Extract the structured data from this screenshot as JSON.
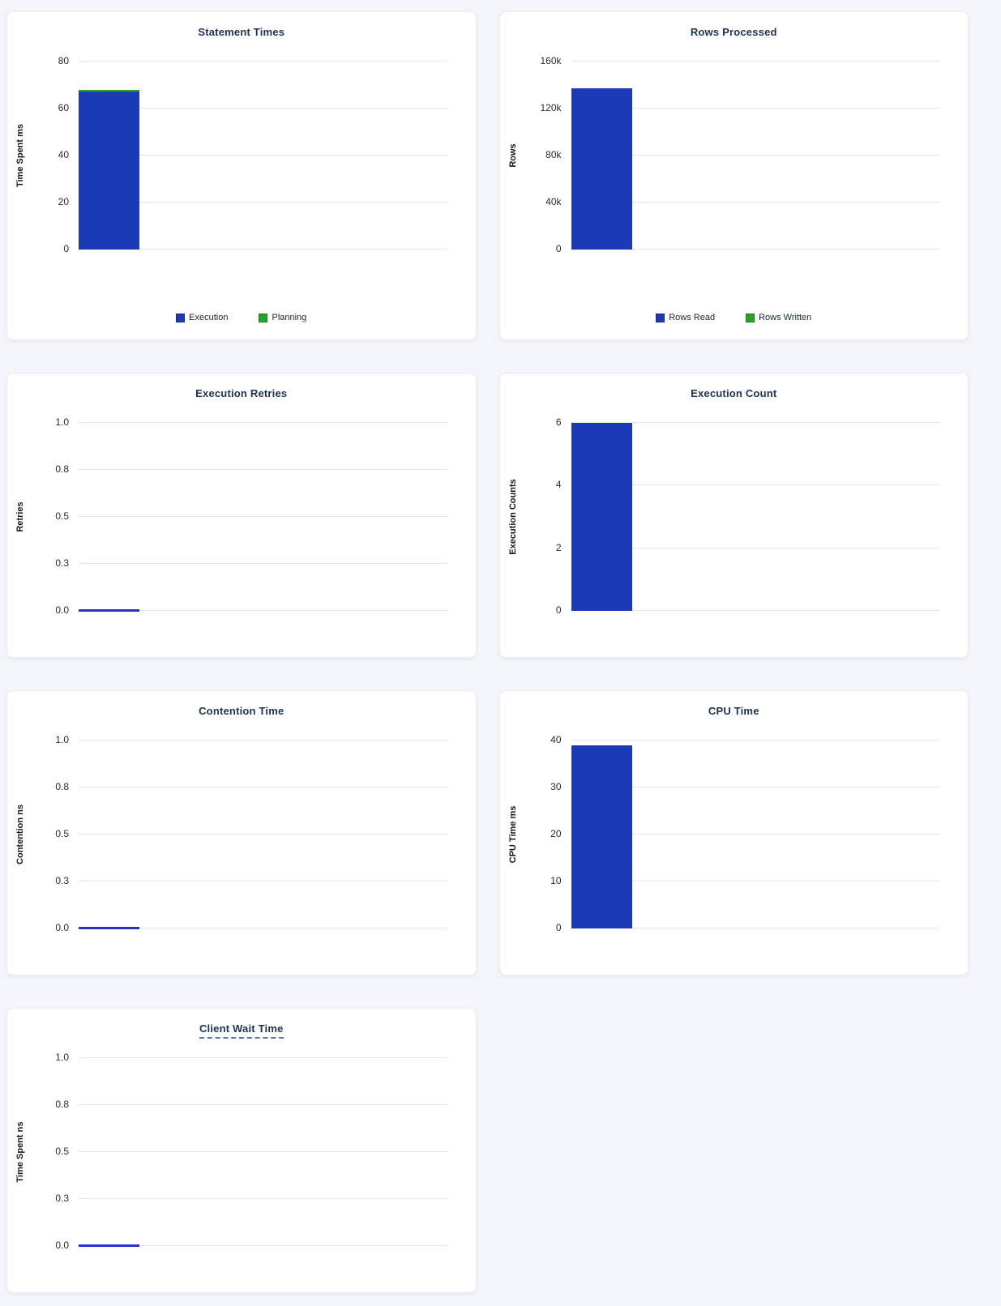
{
  "page": {
    "background": "#f3f5f9",
    "card_background": "#ffffff"
  },
  "colors": {
    "bar_blue": "#1b3ab6",
    "bar_green": "#29a327",
    "zero_line_blue": "#2433d0",
    "title_navy": "#1d3252",
    "gridline": "#e4e4e4",
    "tooltip_underline": "#5b78ad"
  },
  "chart_data": [
    {
      "type": "bar",
      "title": "Statement Times",
      "title_tooltip_underline": false,
      "ylabel": "Time Spent ms",
      "xlabel": "",
      "categories": [
        ""
      ],
      "yticks_top_to_bottom": [
        "80",
        "60",
        "40",
        "20",
        "0"
      ],
      "ylim": [
        0,
        80
      ],
      "grid": true,
      "stacked": true,
      "show_legend": true,
      "legend_position": "bottom",
      "series": [
        {
          "name": "Execution",
          "color": "#1b3ab6",
          "values": [
            67.3
          ]
        },
        {
          "name": "Planning",
          "color": "#29a327",
          "values": [
            0.5
          ]
        }
      ]
    },
    {
      "type": "bar",
      "title": "Rows Processed",
      "title_tooltip_underline": false,
      "ylabel": "Rows",
      "xlabel": "",
      "categories": [
        ""
      ],
      "yticks_top_to_bottom": [
        "160k",
        "120k",
        "80k",
        "40k",
        "0"
      ],
      "ylim": [
        0,
        160000
      ],
      "grid": true,
      "stacked": true,
      "show_legend": true,
      "legend_position": "bottom",
      "series": [
        {
          "name": "Rows Read",
          "color": "#1b3ab6",
          "values": [
            137000
          ]
        },
        {
          "name": "Rows Written",
          "color": "#29a327",
          "values": [
            0
          ]
        }
      ]
    },
    {
      "type": "bar",
      "title": "Execution Retries",
      "title_tooltip_underline": false,
      "ylabel": "Retries",
      "xlabel": "",
      "categories": [
        ""
      ],
      "yticks_top_to_bottom": [
        "1.0",
        "0.8",
        "0.5",
        "0.3",
        "0.0"
      ],
      "ylim": [
        0,
        1.0
      ],
      "grid": true,
      "stacked": false,
      "show_legend": false,
      "series": [
        {
          "name": "",
          "color": "#1b3ab6",
          "values": [
            0
          ]
        }
      ]
    },
    {
      "type": "bar",
      "title": "Execution Count",
      "title_tooltip_underline": false,
      "ylabel": "Execution Counts",
      "xlabel": "",
      "categories": [
        ""
      ],
      "yticks_top_to_bottom": [
        "6",
        "4",
        "2",
        "0"
      ],
      "ylim": [
        0,
        6
      ],
      "grid": true,
      "stacked": false,
      "show_legend": false,
      "series": [
        {
          "name": "",
          "color": "#1b3ab6",
          "values": [
            6
          ]
        }
      ]
    },
    {
      "type": "bar",
      "title": "Contention Time",
      "title_tooltip_underline": false,
      "ylabel": "Contention ns",
      "xlabel": "",
      "categories": [
        ""
      ],
      "yticks_top_to_bottom": [
        "1.0",
        "0.8",
        "0.5",
        "0.3",
        "0.0"
      ],
      "ylim": [
        0,
        1.0
      ],
      "grid": true,
      "stacked": false,
      "show_legend": false,
      "series": [
        {
          "name": "",
          "color": "#1b3ab6",
          "values": [
            0
          ]
        }
      ]
    },
    {
      "type": "bar",
      "title": "CPU Time",
      "title_tooltip_underline": false,
      "ylabel": "CPU Time ms",
      "xlabel": "",
      "categories": [
        ""
      ],
      "yticks_top_to_bottom": [
        "40",
        "30",
        "20",
        "10",
        "0"
      ],
      "ylim": [
        0,
        40
      ],
      "grid": true,
      "stacked": false,
      "show_legend": false,
      "series": [
        {
          "name": "",
          "color": "#1b3ab6",
          "values": [
            39
          ]
        }
      ]
    },
    {
      "type": "bar",
      "title": "Client Wait Time",
      "title_tooltip_underline": true,
      "ylabel": "Time Spent ns",
      "xlabel": "",
      "categories": [
        ""
      ],
      "yticks_top_to_bottom": [
        "1.0",
        "0.8",
        "0.5",
        "0.3",
        "0.0"
      ],
      "ylim": [
        0,
        1.0
      ],
      "grid": true,
      "stacked": false,
      "show_legend": false,
      "series": [
        {
          "name": "",
          "color": "#1b3ab6",
          "values": [
            0
          ]
        }
      ]
    }
  ]
}
